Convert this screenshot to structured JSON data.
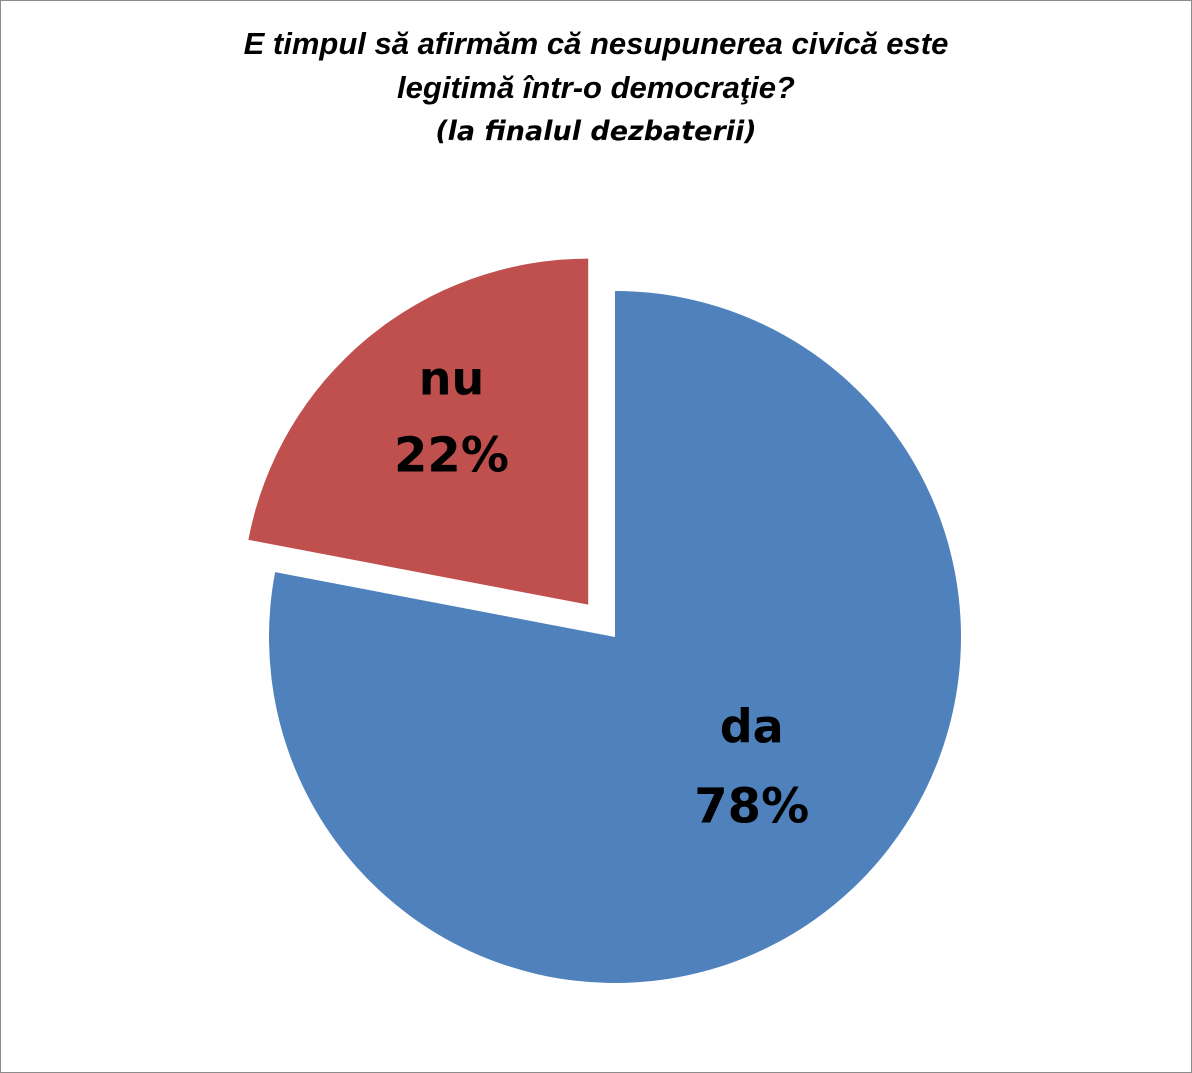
{
  "chart_data": {
    "type": "pie",
    "title_lines": [
      "E timpul să afirmăm că nesupunerea civică este",
      "legitimă într-o democraţie?"
    ],
    "subtitle": "(la finalul dezbaterii)",
    "slices": [
      {
        "name": "da",
        "value": 78,
        "label": "78%",
        "color": "#4F81BD",
        "exploded": false
      },
      {
        "name": "nu",
        "value": 22,
        "label": "22%",
        "color": "#C0504D",
        "exploded": true
      }
    ],
    "start_angle_deg": 0,
    "direction": "clockwise",
    "legend": "none"
  }
}
